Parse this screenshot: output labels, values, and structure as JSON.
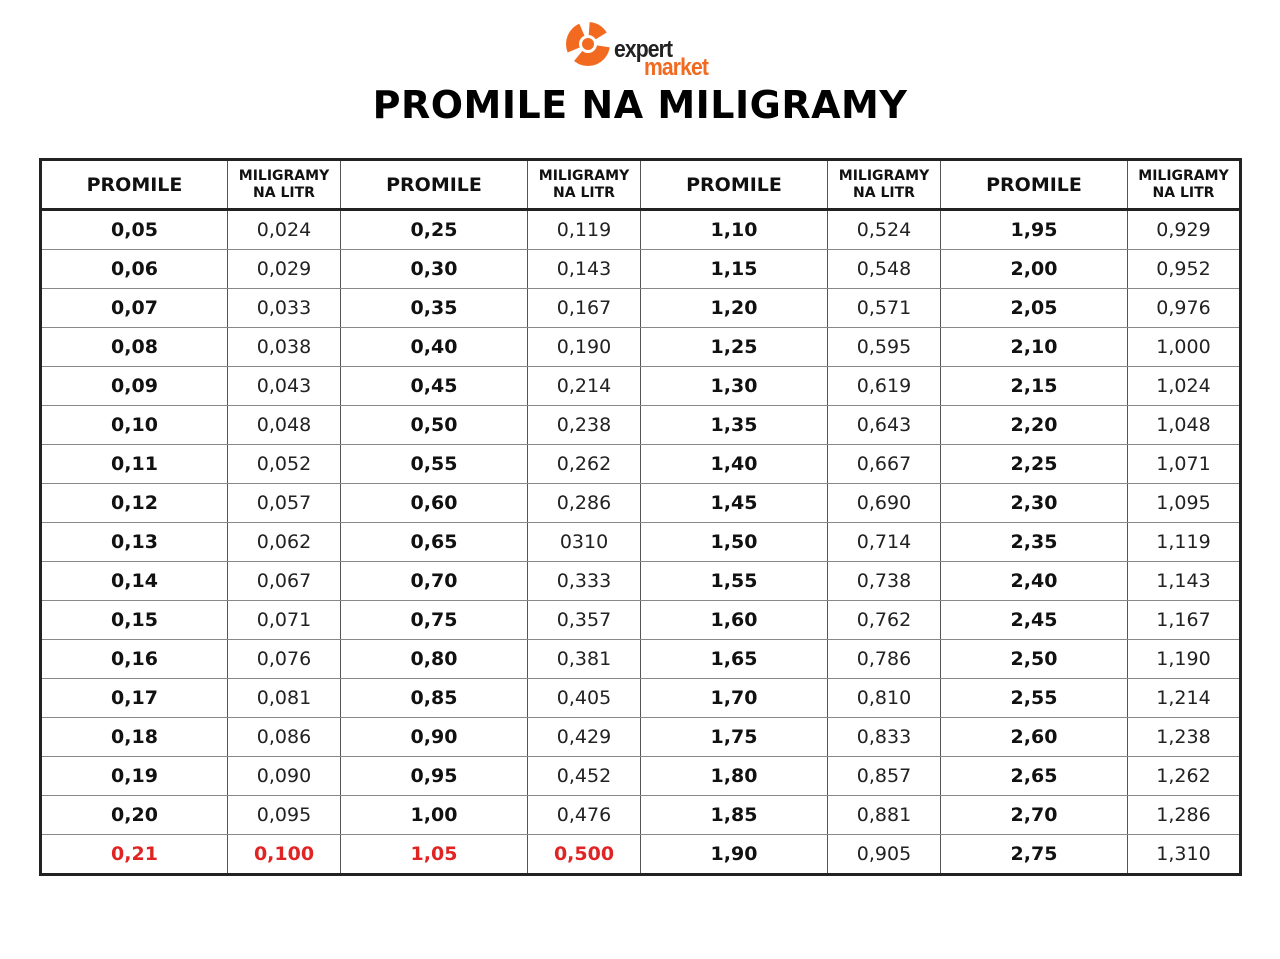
{
  "logo": {
    "line1": "expert",
    "line2": "market",
    "accent_color": "#f26a1f"
  },
  "title": "PROMILE NA MILIGRAMY",
  "headers": {
    "promile": "PROMILE",
    "mg_line1": "MILIGRAMY",
    "mg_line2": "NA LITR"
  },
  "highlight_color": "#e02424",
  "rows": [
    [
      {
        "p": "0,05",
        "m": "0,024"
      },
      {
        "p": "0,25",
        "m": "0,119"
      },
      {
        "p": "1,10",
        "m": "0,524"
      },
      {
        "p": "1,95",
        "m": "0,929"
      }
    ],
    [
      {
        "p": "0,06",
        "m": "0,029"
      },
      {
        "p": "0,30",
        "m": "0,143"
      },
      {
        "p": "1,15",
        "m": "0,548"
      },
      {
        "p": "2,00",
        "m": "0,952"
      }
    ],
    [
      {
        "p": "0,07",
        "m": "0,033"
      },
      {
        "p": "0,35",
        "m": "0,167"
      },
      {
        "p": "1,20",
        "m": "0,571"
      },
      {
        "p": "2,05",
        "m": "0,976"
      }
    ],
    [
      {
        "p": "0,08",
        "m": "0,038"
      },
      {
        "p": "0,40",
        "m": "0,190"
      },
      {
        "p": "1,25",
        "m": "0,595"
      },
      {
        "p": "2,10",
        "m": "1,000"
      }
    ],
    [
      {
        "p": "0,09",
        "m": "0,043"
      },
      {
        "p": "0,45",
        "m": "0,214"
      },
      {
        "p": "1,30",
        "m": "0,619"
      },
      {
        "p": "2,15",
        "m": "1,024"
      }
    ],
    [
      {
        "p": "0,10",
        "m": "0,048"
      },
      {
        "p": "0,50",
        "m": "0,238"
      },
      {
        "p": "1,35",
        "m": "0,643"
      },
      {
        "p": "2,20",
        "m": "1,048"
      }
    ],
    [
      {
        "p": "0,11",
        "m": "0,052"
      },
      {
        "p": "0,55",
        "m": "0,262"
      },
      {
        "p": "1,40",
        "m": "0,667"
      },
      {
        "p": "2,25",
        "m": "1,071"
      }
    ],
    [
      {
        "p": "0,12",
        "m": "0,057"
      },
      {
        "p": "0,60",
        "m": "0,286"
      },
      {
        "p": "1,45",
        "m": "0,690"
      },
      {
        "p": "2,30",
        "m": "1,095"
      }
    ],
    [
      {
        "p": "0,13",
        "m": "0,062"
      },
      {
        "p": "0,65",
        "m": "0310"
      },
      {
        "p": "1,50",
        "m": "0,714"
      },
      {
        "p": "2,35",
        "m": "1,119"
      }
    ],
    [
      {
        "p": "0,14",
        "m": "0,067"
      },
      {
        "p": "0,70",
        "m": "0,333"
      },
      {
        "p": "1,55",
        "m": "0,738"
      },
      {
        "p": "2,40",
        "m": "1,143"
      }
    ],
    [
      {
        "p": "0,15",
        "m": "0,071"
      },
      {
        "p": "0,75",
        "m": "0,357"
      },
      {
        "p": "1,60",
        "m": "0,762"
      },
      {
        "p": "2,45",
        "m": "1,167"
      }
    ],
    [
      {
        "p": "0,16",
        "m": "0,076"
      },
      {
        "p": "0,80",
        "m": "0,381"
      },
      {
        "p": "1,65",
        "m": "0,786"
      },
      {
        "p": "2,50",
        "m": "1,190"
      }
    ],
    [
      {
        "p": "0,17",
        "m": "0,081"
      },
      {
        "p": "0,85",
        "m": "0,405"
      },
      {
        "p": "1,70",
        "m": "0,810"
      },
      {
        "p": "2,55",
        "m": "1,214"
      }
    ],
    [
      {
        "p": "0,18",
        "m": "0,086"
      },
      {
        "p": "0,90",
        "m": "0,429"
      },
      {
        "p": "1,75",
        "m": "0,833"
      },
      {
        "p": "2,60",
        "m": "1,238"
      }
    ],
    [
      {
        "p": "0,19",
        "m": "0,090"
      },
      {
        "p": "0,95",
        "m": "0,452"
      },
      {
        "p": "1,80",
        "m": "0,857"
      },
      {
        "p": "2,65",
        "m": "1,262"
      }
    ],
    [
      {
        "p": "0,20",
        "m": "0,095"
      },
      {
        "p": "1,00",
        "m": "0,476"
      },
      {
        "p": "1,85",
        "m": "0,881"
      },
      {
        "p": "2,70",
        "m": "1,286"
      }
    ],
    [
      {
        "p": "0,21",
        "m": "0,100",
        "hl": true
      },
      {
        "p": "1,05",
        "m": "0,500",
        "hl": true
      },
      {
        "p": "1,90",
        "m": "0,905"
      },
      {
        "p": "2,75",
        "m": "1,310"
      }
    ]
  ]
}
